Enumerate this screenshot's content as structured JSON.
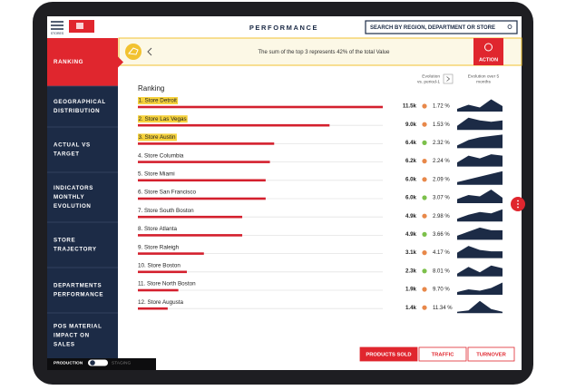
{
  "header": {
    "logo_caption": "STORES",
    "title": "PERFORMANCE",
    "search_placeholder": "SEARCH BY REGION, DEPARTMENT OR STORE"
  },
  "sidebar": {
    "items": [
      {
        "lines": [
          "RANKING"
        ],
        "active": true
      },
      {
        "lines": [
          "GEOGRAPHICAL",
          "DISTRIBUTION"
        ],
        "active": false
      },
      {
        "lines": [
          "ACTUAL VS",
          "TARGET"
        ],
        "active": false
      },
      {
        "lines": [
          "INDICATORS",
          "MONTHLY",
          "EVOLUTION"
        ],
        "active": false
      },
      {
        "lines": [
          "STORE",
          "TRAJECTORY"
        ],
        "active": false
      },
      {
        "lines": [
          "DEPARTMENTS",
          "PERFORMANCE"
        ],
        "active": false
      },
      {
        "lines": [
          "POS MATERIAL",
          "IMPACT ON",
          "SALES"
        ],
        "active": false
      }
    ],
    "toggle": {
      "left": "PRODUCTION",
      "right": "STAGING"
    }
  },
  "insight": {
    "text": "The sum of the top 3 represents 42% of the total Value",
    "action": "ACTION"
  },
  "ranking": {
    "title": "Ranking",
    "evolution_header": [
      "Evolution",
      "vs. period-1"
    ],
    "trend_header": [
      "Evolution over 5",
      "months"
    ],
    "rows": [
      {
        "label": "1. Store Detroit",
        "value": 11500,
        "value_label": "11.5k",
        "change": "1.72 %",
        "dot_color": "#e8884a",
        "highlight": true,
        "trend": [
          2,
          5,
          3,
          9,
          4
        ]
      },
      {
        "label": "2. Store Las Vegas",
        "value": 9000,
        "value_label": "9.0k",
        "change": "1.53 %",
        "dot_color": "#e8884a",
        "highlight": true,
        "trend": [
          3,
          9,
          7,
          6,
          7
        ]
      },
      {
        "label": "3. Store Austin",
        "value": 6400,
        "value_label": "6.4k",
        "change": "2.32 %",
        "dot_color": "#7cc04b",
        "highlight": true,
        "trend": [
          2,
          6,
          8,
          9,
          10
        ]
      },
      {
        "label": "4. Store Columbia",
        "value": 6200,
        "value_label": "6.2k",
        "change": "2.24 %",
        "dot_color": "#e8884a",
        "highlight": false,
        "trend": [
          3,
          8,
          6,
          9,
          8
        ]
      },
      {
        "label": "5. Store Miami",
        "value": 6000,
        "value_label": "6.0k",
        "change": "2.09 %",
        "dot_color": "#e8884a",
        "highlight": false,
        "trend": [
          2,
          4,
          6,
          8,
          10
        ]
      },
      {
        "label": "6. Store San Francisco",
        "value": 6000,
        "value_label": "6.0k",
        "change": "3.07 %",
        "dot_color": "#7cc04b",
        "highlight": false,
        "trend": [
          3,
          6,
          5,
          10,
          4
        ]
      },
      {
        "label": "7. Store South Boston",
        "value": 4900,
        "value_label": "4.9k",
        "change": "2.98 %",
        "dot_color": "#e8884a",
        "highlight": false,
        "trend": [
          2,
          5,
          7,
          6,
          9
        ]
      },
      {
        "label": "8. Store Atlanta",
        "value": 4900,
        "value_label": "4.9k",
        "change": "3.66 %",
        "dot_color": "#7cc04b",
        "highlight": false,
        "trend": [
          3,
          6,
          9,
          7,
          7
        ]
      },
      {
        "label": "9. Store Raleigh",
        "value": 3100,
        "value_label": "3.1k",
        "change": "4.17 %",
        "dot_color": "#e8884a",
        "highlight": false,
        "trend": [
          4,
          9,
          6,
          5,
          5
        ]
      },
      {
        "label": "10. Store Boston",
        "value": 2300,
        "value_label": "2.3k",
        "change": "8.01 %",
        "dot_color": "#7cc04b",
        "highlight": false,
        "trend": [
          2,
          7,
          3,
          8,
          6
        ]
      },
      {
        "label": "11. Store North Boston",
        "value": 1900,
        "value_label": "1.9k",
        "change": "9.70 %",
        "dot_color": "#e8884a",
        "highlight": false,
        "trend": [
          2,
          4,
          3,
          5,
          9
        ]
      },
      {
        "label": "12. Store Augusta",
        "value": 1400,
        "value_label": "1.4k",
        "change": "11.34 %",
        "dot_color": "#e8884a",
        "highlight": false,
        "trend": [
          1,
          2,
          9,
          3,
          1
        ]
      }
    ]
  },
  "tabs": [
    {
      "label": "PRODUCTS SOLD",
      "active": true
    },
    {
      "label": "TRAFFIC",
      "active": false
    },
    {
      "label": "TURNOVER",
      "active": false
    }
  ]
}
